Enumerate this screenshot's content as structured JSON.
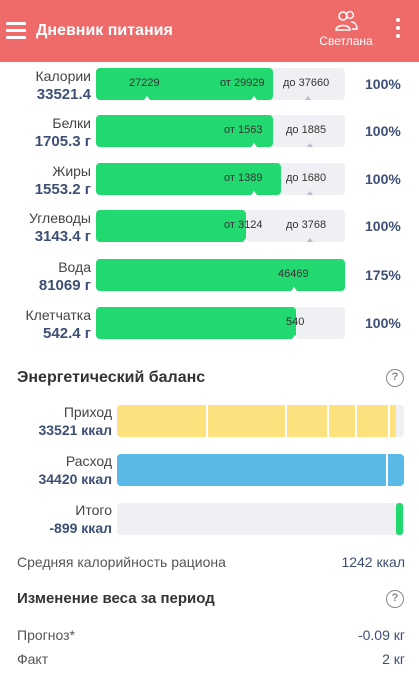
{
  "appbar": {
    "title": "Дневник питания",
    "menu_icon": "hamburger-icon",
    "user_icon": "users-icon",
    "user_name": "Светлана",
    "more_icon": "more-vertical-icon",
    "color": "#ee6b6a"
  },
  "nutrients": [
    {
      "name": "Калории",
      "value": "33521.4",
      "start_label": "27229",
      "min_label": "от 29929",
      "max_label": "до 37660",
      "percent": "100%",
      "fill_fraction": 0.71
    },
    {
      "name": "Белки",
      "value": "1705.3 г",
      "min_label": "от 1563",
      "max_label": "до 1885",
      "percent": "100%",
      "fill_fraction": 0.71
    },
    {
      "name": "Жиры",
      "value": "1553.2 г",
      "min_label": "от 1389",
      "max_label": "до 1680",
      "percent": "100%",
      "fill_fraction": 0.74
    },
    {
      "name": "Углеводы",
      "value": "3143.4 г",
      "min_label": "от 3124",
      "max_label": "до 3768",
      "percent": "100%",
      "fill_fraction": 0.6
    },
    {
      "name": "Вода",
      "value": "81069 г",
      "min_label": "46469",
      "percent": "175%",
      "fill_fraction": 1.0
    },
    {
      "name": "Клетчатка",
      "value": "542.4 г",
      "min_label": "540",
      "percent": "100%",
      "fill_fraction": 0.8
    }
  ],
  "energy_balance": {
    "title": "Энергетический баланс",
    "help_icon": "help-circle-icon",
    "help_symbol": "?",
    "rows": [
      {
        "name": "Приход",
        "value": "33521 ккал",
        "color": "#fce17e",
        "fill_fraction": 0.97
      },
      {
        "name": "Расход",
        "value": "34420 ккал",
        "color": "#5ab9e6",
        "fill_fraction": 1.0
      },
      {
        "name": "Итого",
        "value": "-899 ккал",
        "color": "#22d96f"
      }
    ]
  },
  "avg_calorie": {
    "label": "Средняя калорийность рациона",
    "value": "1242 ккал"
  },
  "weight_change": {
    "title": "Изменение веса за период",
    "help_symbol": "?",
    "forecast_label": "Прогноз*",
    "forecast_value": "-0.09 кг",
    "fact_label": "Факт",
    "fact_value": "2 кг"
  }
}
